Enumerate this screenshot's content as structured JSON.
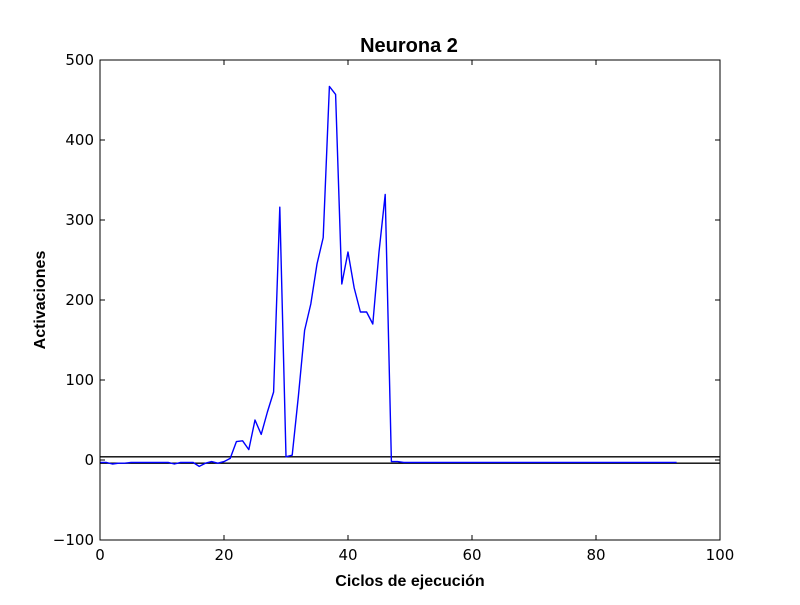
{
  "chart_data": {
    "type": "line",
    "title": "Neurona 2",
    "xlabel": "Ciclos de ejecución",
    "ylabel": "Activaciones",
    "xlim": [
      0,
      100
    ],
    "ylim": [
      -100,
      500
    ],
    "x_ticks": [
      0,
      20,
      40,
      60,
      80,
      100
    ],
    "y_ticks": [
      -100,
      0,
      100,
      200,
      300,
      400,
      500
    ],
    "x_tick_labels": [
      "0",
      "20",
      "40",
      "60",
      "80",
      "100"
    ],
    "y_tick_labels": [
      "−100",
      "0",
      "100",
      "200",
      "300",
      "400",
      "500"
    ],
    "grid": false,
    "legend": "none",
    "reference_lines": [
      4,
      -4
    ],
    "colors": {
      "series": "#0000ff",
      "reference": "#000000"
    },
    "series": [
      {
        "x": [
          0,
          1,
          2,
          3,
          4,
          5,
          6,
          7,
          8,
          9,
          10,
          11,
          12,
          13,
          14,
          15,
          16,
          17,
          18,
          19,
          20,
          21,
          22,
          23,
          24,
          25,
          26,
          27,
          28,
          29,
          30,
          31,
          32,
          33,
          34,
          35,
          36,
          37,
          38,
          39,
          40,
          41,
          42,
          43,
          44,
          45,
          46,
          47,
          48,
          49,
          50,
          52,
          55,
          58,
          60,
          62,
          65,
          70,
          75,
          80,
          85,
          90,
          93
        ],
        "y": [
          -3,
          -3,
          -5,
          -4,
          -4,
          -3,
          -3,
          -3,
          -3,
          -3,
          -3,
          -3,
          -5,
          -3,
          -3,
          -3,
          -8,
          -4,
          -2,
          -4,
          -2,
          2,
          23,
          24,
          13,
          50,
          32,
          60,
          85,
          316,
          4,
          6,
          80,
          162,
          195,
          245,
          278,
          467,
          457,
          220,
          260,
          215,
          185,
          185,
          170,
          260,
          332,
          -2,
          -2,
          -3,
          -3,
          -3,
          -3,
          -3,
          -3,
          -3,
          -3,
          -3,
          -3,
          -3,
          -3,
          -3,
          -3
        ]
      }
    ]
  }
}
